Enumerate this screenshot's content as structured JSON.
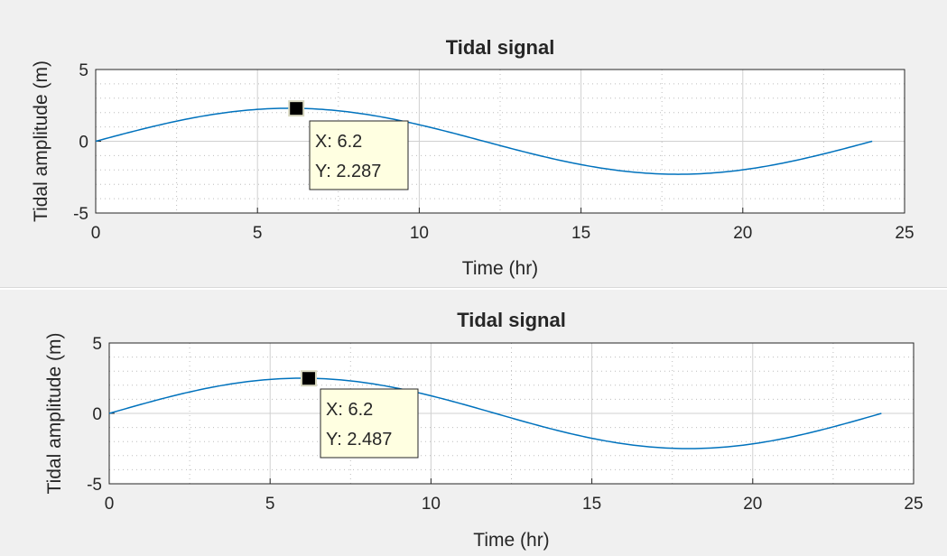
{
  "chart_data": [
    {
      "type": "line",
      "title": "Tidal signal",
      "xlabel": "Time (hr)",
      "ylabel": "Tidal amplitude (m)",
      "xlim": [
        0,
        25
      ],
      "ylim": [
        -5,
        5
      ],
      "xticks": [
        "0",
        "5",
        "10",
        "15",
        "20",
        "25"
      ],
      "yticks": [
        "5",
        "0",
        "-5"
      ],
      "grid": "dotted",
      "series": [
        {
          "amplitude": 2.3,
          "period_hr": 24,
          "x_start": 0,
          "x_end": 24,
          "color": "#0072bd"
        }
      ],
      "datatip": {
        "x": 6.2,
        "y": 2.287,
        "text_x": "X: 6.2",
        "text_y": "Y: 2.287"
      }
    },
    {
      "type": "line",
      "title": "Tidal signal",
      "xlabel": "Time (hr)",
      "ylabel": "Tidal amplitude (m)",
      "xlim": [
        0,
        25
      ],
      "ylim": [
        -5,
        5
      ],
      "xticks": [
        "0",
        "5",
        "10",
        "15",
        "20",
        "25"
      ],
      "yticks": [
        "5",
        "0",
        "-5"
      ],
      "grid": "dotted",
      "series": [
        {
          "amplitude": 2.5,
          "period_hr": 24,
          "x_start": 0,
          "x_end": 24,
          "color": "#0072bd"
        }
      ],
      "datatip": {
        "x": 6.2,
        "y": 2.487,
        "text_x": "X: 6.2",
        "text_y": "Y: 2.487"
      }
    }
  ]
}
